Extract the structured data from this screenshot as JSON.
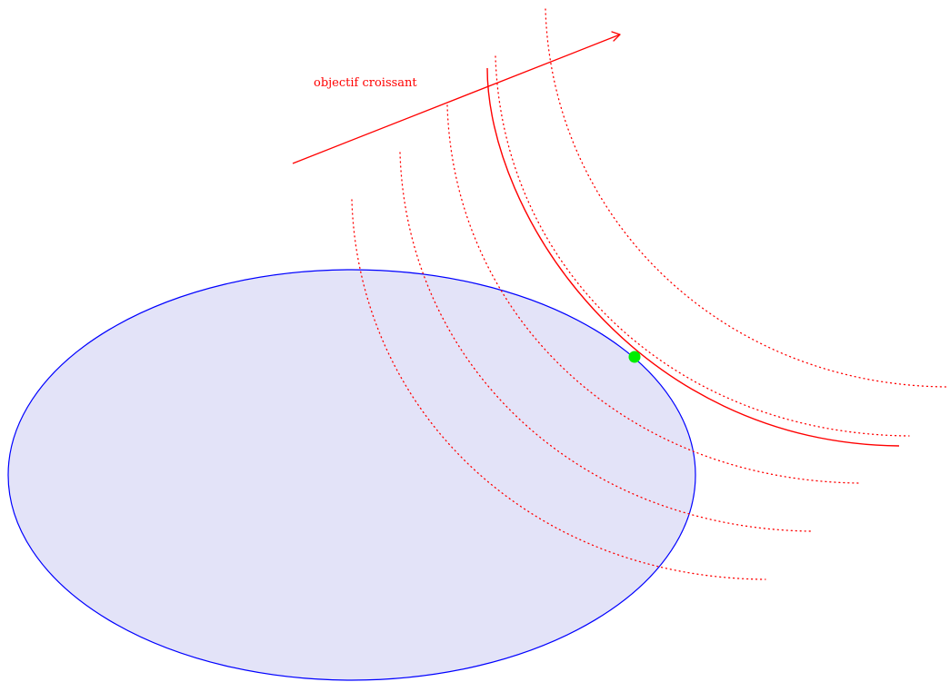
{
  "diagram": {
    "objective_label": "objectif croissant",
    "feasible_region": {
      "shape": "ellipse",
      "fill_color": "#e3e3f8",
      "stroke_color": "#0000ff"
    },
    "level_curves": {
      "color": "#ff0000",
      "dotted_count": 5,
      "active_count": 1
    },
    "objective_direction": {
      "color": "#ff0000"
    },
    "optimal_point": {
      "color": "#00ee00"
    }
  }
}
